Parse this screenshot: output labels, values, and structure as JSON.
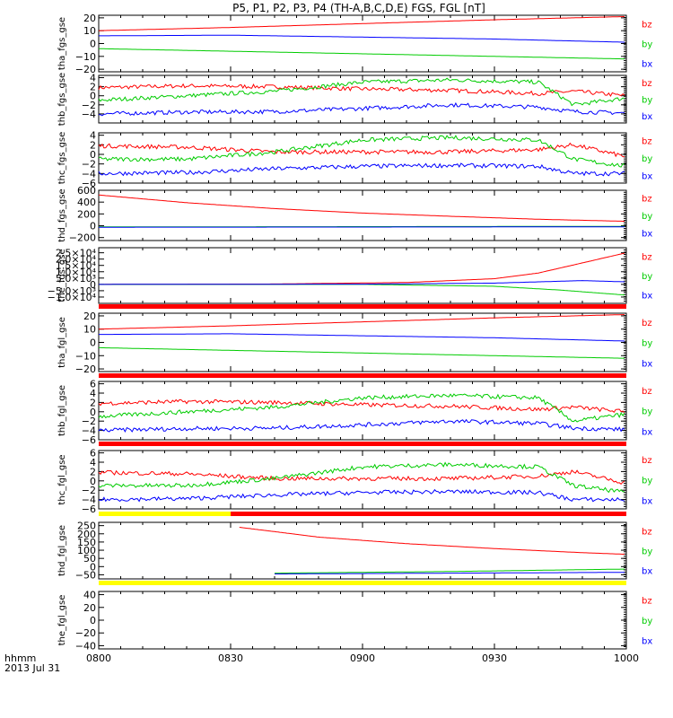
{
  "title": "P5, P1, P2, P3, P4 (TH-A,B,C,D,E) FGS, FGL [nT]",
  "footer": {
    "line1": "hhmm",
    "line2": "2013 Jul 31"
  },
  "colors": {
    "bz": "#ff0000",
    "by": "#00cc00",
    "bx": "#0000ff",
    "bar_red": "#ff0000",
    "bar_yellow": "#ffff00"
  },
  "chart_data": [
    {
      "type": "line",
      "ylabel": "tha_fgs_gse",
      "ylim": [
        -22,
        22
      ],
      "yticks": [
        "20",
        "10",
        "0",
        "−10",
        "−20"
      ],
      "ytick_values": [
        20,
        10,
        0,
        -10,
        -20
      ],
      "xlim": [
        0,
        120
      ],
      "series": [
        {
          "name": "bz",
          "x": [
            0,
            30,
            60,
            90,
            120
          ],
          "values": [
            10,
            12.5,
            15.5,
            18.5,
            21
          ]
        },
        {
          "name": "by",
          "x": [
            0,
            30,
            60,
            90,
            120
          ],
          "values": [
            -4,
            -6,
            -8,
            -10,
            -12
          ]
        },
        {
          "name": "bx",
          "x": [
            0,
            30,
            60,
            90,
            120
          ],
          "values": [
            6,
            6.5,
            5,
            3.5,
            1
          ]
        }
      ]
    },
    {
      "type": "line",
      "ylabel": "thb_fgs_gse",
      "ylim": [
        -6,
        4.5
      ],
      "yticks": [
        "4",
        "2",
        "0",
        "−2",
        "−4"
      ],
      "ytick_values": [
        4,
        2,
        0,
        -2,
        -4
      ],
      "xlim": [
        0,
        120
      ],
      "series": [
        {
          "name": "bz",
          "x": [
            0,
            20,
            40,
            60,
            80,
            100,
            108,
            120
          ],
          "values": [
            1.8,
            2.2,
            2,
            1.5,
            1.2,
            0.5,
            1,
            0
          ]
        },
        {
          "name": "by",
          "x": [
            0,
            20,
            40,
            60,
            80,
            100,
            108,
            120
          ],
          "values": [
            -1,
            0,
            1,
            3,
            3.5,
            3,
            -2,
            -0.5
          ]
        },
        {
          "name": "bx",
          "x": [
            0,
            20,
            40,
            60,
            80,
            100,
            108,
            120
          ],
          "values": [
            -4,
            -3.6,
            -3.5,
            -2.8,
            -2,
            -2.5,
            -3.5,
            -3.8
          ]
        }
      ],
      "bar": "none"
    },
    {
      "type": "line",
      "ylabel": "thc_fgs_gse",
      "ylim": [
        -6,
        4.5
      ],
      "yticks": [
        "4",
        "2",
        "0",
        "−2",
        "−4",
        "−6"
      ],
      "ytick_values": [
        4,
        2,
        0,
        -2,
        -4,
        -6
      ],
      "xlim": [
        0,
        120
      ],
      "series": [
        {
          "name": "bz",
          "x": [
            0,
            20,
            40,
            60,
            80,
            100,
            108,
            120
          ],
          "values": [
            1.8,
            1.5,
            0.5,
            0.5,
            0.5,
            1,
            2,
            -0.5
          ]
        },
        {
          "name": "by",
          "x": [
            0,
            20,
            40,
            60,
            80,
            100,
            108,
            120
          ],
          "values": [
            -1,
            -1,
            0.5,
            3,
            3.5,
            3,
            -1,
            -2.5
          ]
        },
        {
          "name": "bx",
          "x": [
            0,
            20,
            40,
            60,
            80,
            100,
            108,
            120
          ],
          "values": [
            -4,
            -3.8,
            -3,
            -2.5,
            -2.3,
            -2.5,
            -4,
            -4
          ]
        }
      ]
    },
    {
      "type": "line",
      "ylabel": "thd_fgs_gse",
      "ylim": [
        -250,
        600
      ],
      "yticks": [
        "600",
        "400",
        "200",
        "0",
        "−200"
      ],
      "ytick_values": [
        600,
        400,
        200,
        0,
        -200
      ],
      "xlim": [
        0,
        120
      ],
      "series": [
        {
          "name": "bz",
          "x": [
            0,
            20,
            40,
            60,
            80,
            100,
            120
          ],
          "values": [
            520,
            390,
            290,
            215,
            160,
            110,
            75
          ]
        },
        {
          "name": "by",
          "x": [
            0,
            60,
            120
          ],
          "values": [
            -20,
            -15,
            -10
          ]
        },
        {
          "name": "bx",
          "x": [
            0,
            60,
            120
          ],
          "values": [
            -25,
            -22,
            -18
          ]
        }
      ]
    },
    {
      "type": "line",
      "ylabel": "the_fgs_gse",
      "ylim": [
        -15000,
        29000
      ],
      "yticks": [
        "2.5×10⁴",
        "2.0×10⁴",
        "1.5×10⁴",
        "1.0×10⁴",
        "5.0×10³",
        "0",
        "−5.0×10³",
        "−1.0×10⁴"
      ],
      "ytick_values": [
        25000,
        20000,
        15000,
        10000,
        5000,
        0,
        -5000,
        -10000
      ],
      "xlim": [
        0,
        120
      ],
      "series": [
        {
          "name": "bz",
          "x": [
            0,
            40,
            70,
            90,
            100,
            110,
            120
          ],
          "values": [
            0,
            300,
            1500,
            4500,
            9000,
            17000,
            25000
          ]
        },
        {
          "name": "by",
          "x": [
            0,
            60,
            90,
            105,
            120
          ],
          "values": [
            0,
            0,
            -1500,
            -4500,
            -8500
          ]
        },
        {
          "name": "bx",
          "x": [
            0,
            60,
            90,
            110,
            120
          ],
          "values": [
            0,
            200,
            1000,
            3000,
            2000
          ]
        }
      ],
      "bar": "red"
    },
    {
      "type": "line",
      "ylabel": "tha_fgl_gse",
      "ylim": [
        -22,
        22
      ],
      "yticks": [
        "20",
        "10",
        "0",
        "−10",
        "−20"
      ],
      "ytick_values": [
        20,
        10,
        0,
        -10,
        -20
      ],
      "xlim": [
        0,
        120
      ],
      "series": [
        {
          "name": "bz",
          "x": [
            0,
            30,
            60,
            90,
            120
          ],
          "values": [
            10,
            12.5,
            15.5,
            18.5,
            21
          ]
        },
        {
          "name": "by",
          "x": [
            0,
            30,
            60,
            90,
            120
          ],
          "values": [
            -4,
            -6,
            -8,
            -10,
            -12
          ]
        },
        {
          "name": "bx",
          "x": [
            0,
            30,
            60,
            90,
            120
          ],
          "values": [
            6,
            6.5,
            5,
            3.5,
            1
          ]
        }
      ],
      "bar": "red"
    },
    {
      "type": "line",
      "ylabel": "thb_fgl_gse",
      "ylim": [
        -6,
        6.5
      ],
      "yticks": [
        "6",
        "4",
        "2",
        "0",
        "−2",
        "−4",
        "−6"
      ],
      "ytick_values": [
        6,
        4,
        2,
        0,
        -2,
        -4,
        -6
      ],
      "xlim": [
        0,
        120
      ],
      "series": [
        {
          "name": "bz",
          "x": [
            0,
            20,
            40,
            60,
            80,
            100,
            108,
            120
          ],
          "values": [
            1.8,
            2.2,
            2,
            1.5,
            1.2,
            0.5,
            1,
            0
          ]
        },
        {
          "name": "by",
          "x": [
            0,
            20,
            40,
            60,
            80,
            100,
            108,
            120
          ],
          "values": [
            -1,
            0,
            1,
            3,
            3.5,
            3,
            -2,
            -0.5
          ]
        },
        {
          "name": "bx",
          "x": [
            0,
            20,
            40,
            60,
            80,
            100,
            108,
            120
          ],
          "values": [
            -4,
            -3.6,
            -3.5,
            -2.8,
            -2,
            -2.5,
            -3.5,
            -3.8
          ]
        }
      ],
      "bar": "red"
    },
    {
      "type": "line",
      "ylabel": "thc_fgl_gse",
      "ylim": [
        -6,
        6.5
      ],
      "yticks": [
        "6",
        "4",
        "2",
        "0",
        "−2",
        "−4",
        "−6"
      ],
      "ytick_values": [
        6,
        4,
        2,
        0,
        -2,
        -4,
        -6
      ],
      "xlim": [
        0,
        120
      ],
      "series": [
        {
          "name": "bz",
          "x": [
            0,
            20,
            40,
            60,
            80,
            100,
            108,
            120
          ],
          "values": [
            1.8,
            1.5,
            0.5,
            0.5,
            0.5,
            1,
            2,
            -0.5
          ]
        },
        {
          "name": "by",
          "x": [
            0,
            20,
            40,
            60,
            80,
            100,
            108,
            120
          ],
          "values": [
            -1,
            -1,
            0.5,
            3,
            3.5,
            3,
            -1,
            -2.5
          ]
        },
        {
          "name": "bx",
          "x": [
            0,
            20,
            40,
            60,
            80,
            100,
            108,
            120
          ],
          "values": [
            -4,
            -3.8,
            -3,
            -2.5,
            -2.3,
            -2.5,
            -4,
            -4
          ]
        }
      ],
      "bar": "yellow-red",
      "bar_split_x": 30
    },
    {
      "type": "line",
      "ylabel": "thd_fgl_gse",
      "ylim": [
        -75,
        270
      ],
      "yticks": [
        "250",
        "200",
        "150",
        "100",
        "50",
        "0",
        "−50"
      ],
      "ytick_values": [
        250,
        200,
        150,
        100,
        50,
        0,
        -50
      ],
      "xlim": [
        0,
        120
      ],
      "series": [
        {
          "name": "bz",
          "x": [
            32,
            50,
            70,
            90,
            110,
            120
          ],
          "values": [
            240,
            180,
            140,
            110,
            85,
            75
          ]
        },
        {
          "name": "by",
          "x": [
            40,
            80,
            120
          ],
          "values": [
            -40,
            -30,
            -15
          ]
        },
        {
          "name": "bx",
          "x": [
            40,
            80,
            120
          ],
          "values": [
            -45,
            -40,
            -35
          ]
        }
      ],
      "bar": "yellow"
    },
    {
      "type": "line",
      "ylabel": "the_fgl_gse",
      "ylim": [
        -45,
        45
      ],
      "yticks": [
        "40",
        "20",
        "0",
        "−20",
        "−40"
      ],
      "ytick_values": [
        40,
        20,
        0,
        -20,
        -40
      ],
      "xlim": [
        0,
        120
      ],
      "series": []
    }
  ],
  "xaxis": {
    "xlim": [
      0,
      120
    ],
    "ticks": [
      "0800",
      "0830",
      "0900",
      "0930",
      "1000"
    ],
    "tick_values": [
      0,
      30,
      60,
      90,
      120
    ]
  },
  "legend_labels": [
    "bz",
    "by",
    "bx"
  ]
}
